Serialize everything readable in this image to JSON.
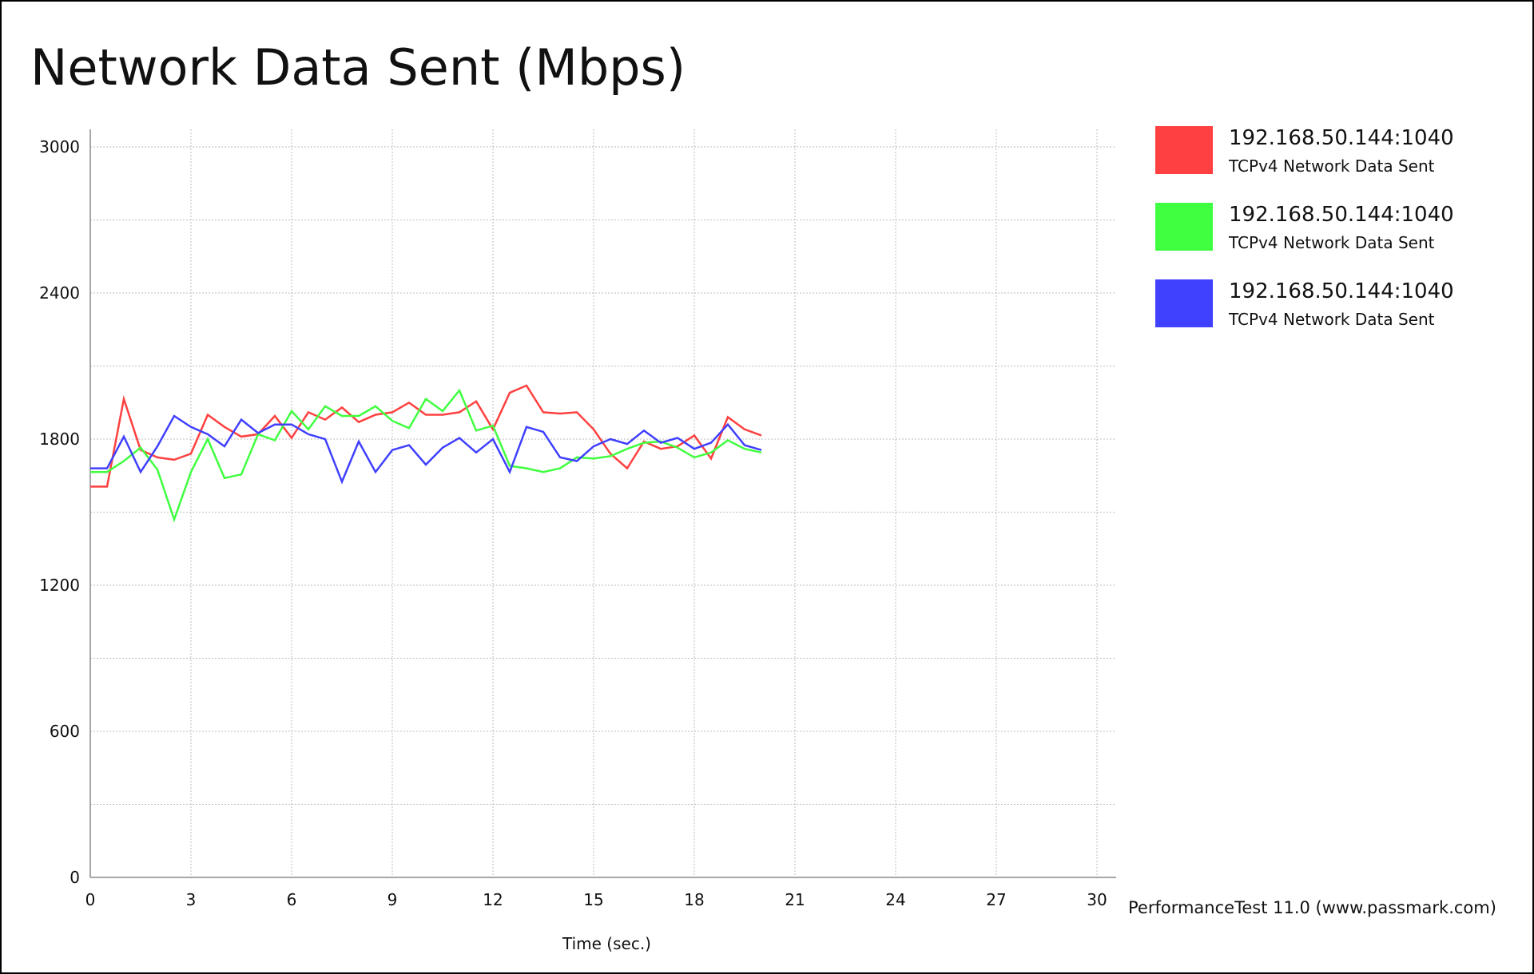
{
  "footer_note": "PerformanceTest 11.0 (www.passmark.com)",
  "chart_data": {
    "type": "line",
    "title": "Network Data Sent (Mbps)",
    "xlabel": "Time (sec.)",
    "ylabel": "",
    "xlim": [
      0,
      30
    ],
    "ylim": [
      0,
      3000
    ],
    "x_ticks": [
      0,
      3,
      6,
      9,
      12,
      15,
      18,
      21,
      24,
      27,
      30
    ],
    "y_ticks": [
      0,
      600,
      1200,
      1800,
      2400,
      3000
    ],
    "grid": true,
    "legend_position": "right",
    "x": [
      0,
      0.5,
      1,
      1.5,
      2,
      2.5,
      3,
      3.5,
      4,
      4.5,
      5,
      5.5,
      6,
      6.5,
      7,
      7.5,
      8,
      8.5,
      9,
      9.5,
      10,
      10.5,
      11,
      11.5,
      12,
      12.5,
      13,
      13.5,
      14,
      14.5,
      15,
      15.5,
      16,
      16.5,
      17,
      17.5,
      18,
      18.5,
      19,
      19.5,
      20
    ],
    "series": [
      {
        "name": "192.168.50.144:1040",
        "description": "TCPv4 Network Data Sent",
        "color": "#ff4040",
        "values": [
          1605,
          1605,
          1965,
          1755,
          1725,
          1715,
          1740,
          1900,
          1850,
          1810,
          1820,
          1895,
          1805,
          1910,
          1880,
          1930,
          1870,
          1900,
          1910,
          1950,
          1900,
          1900,
          1910,
          1955,
          1840,
          1990,
          2020,
          1910,
          1905,
          1910,
          1840,
          1740,
          1680,
          1790,
          1760,
          1770,
          1815,
          1720,
          1890,
          1840,
          1815
        ]
      },
      {
        "name": "192.168.50.144:1040",
        "description": "TCPv4 Network Data Sent",
        "color": "#40ff40",
        "values": [
          1665,
          1665,
          1710,
          1765,
          1675,
          1470,
          1665,
          1800,
          1640,
          1655,
          1820,
          1795,
          1915,
          1840,
          1935,
          1895,
          1895,
          1935,
          1875,
          1845,
          1965,
          1915,
          2000,
          1835,
          1855,
          1690,
          1680,
          1665,
          1680,
          1725,
          1720,
          1730,
          1760,
          1785,
          1790,
          1765,
          1725,
          1745,
          1795,
          1760,
          1745
        ]
      },
      {
        "name": "192.168.50.144:1040",
        "description": "TCPv4 Network Data Sent",
        "color": "#4040ff",
        "values": [
          1680,
          1680,
          1810,
          1665,
          1770,
          1895,
          1850,
          1820,
          1770,
          1880,
          1825,
          1860,
          1860,
          1820,
          1800,
          1625,
          1790,
          1665,
          1755,
          1775,
          1695,
          1765,
          1805,
          1745,
          1800,
          1665,
          1850,
          1830,
          1725,
          1710,
          1770,
          1800,
          1780,
          1835,
          1785,
          1805,
          1760,
          1785,
          1860,
          1775,
          1755
        ]
      }
    ]
  }
}
